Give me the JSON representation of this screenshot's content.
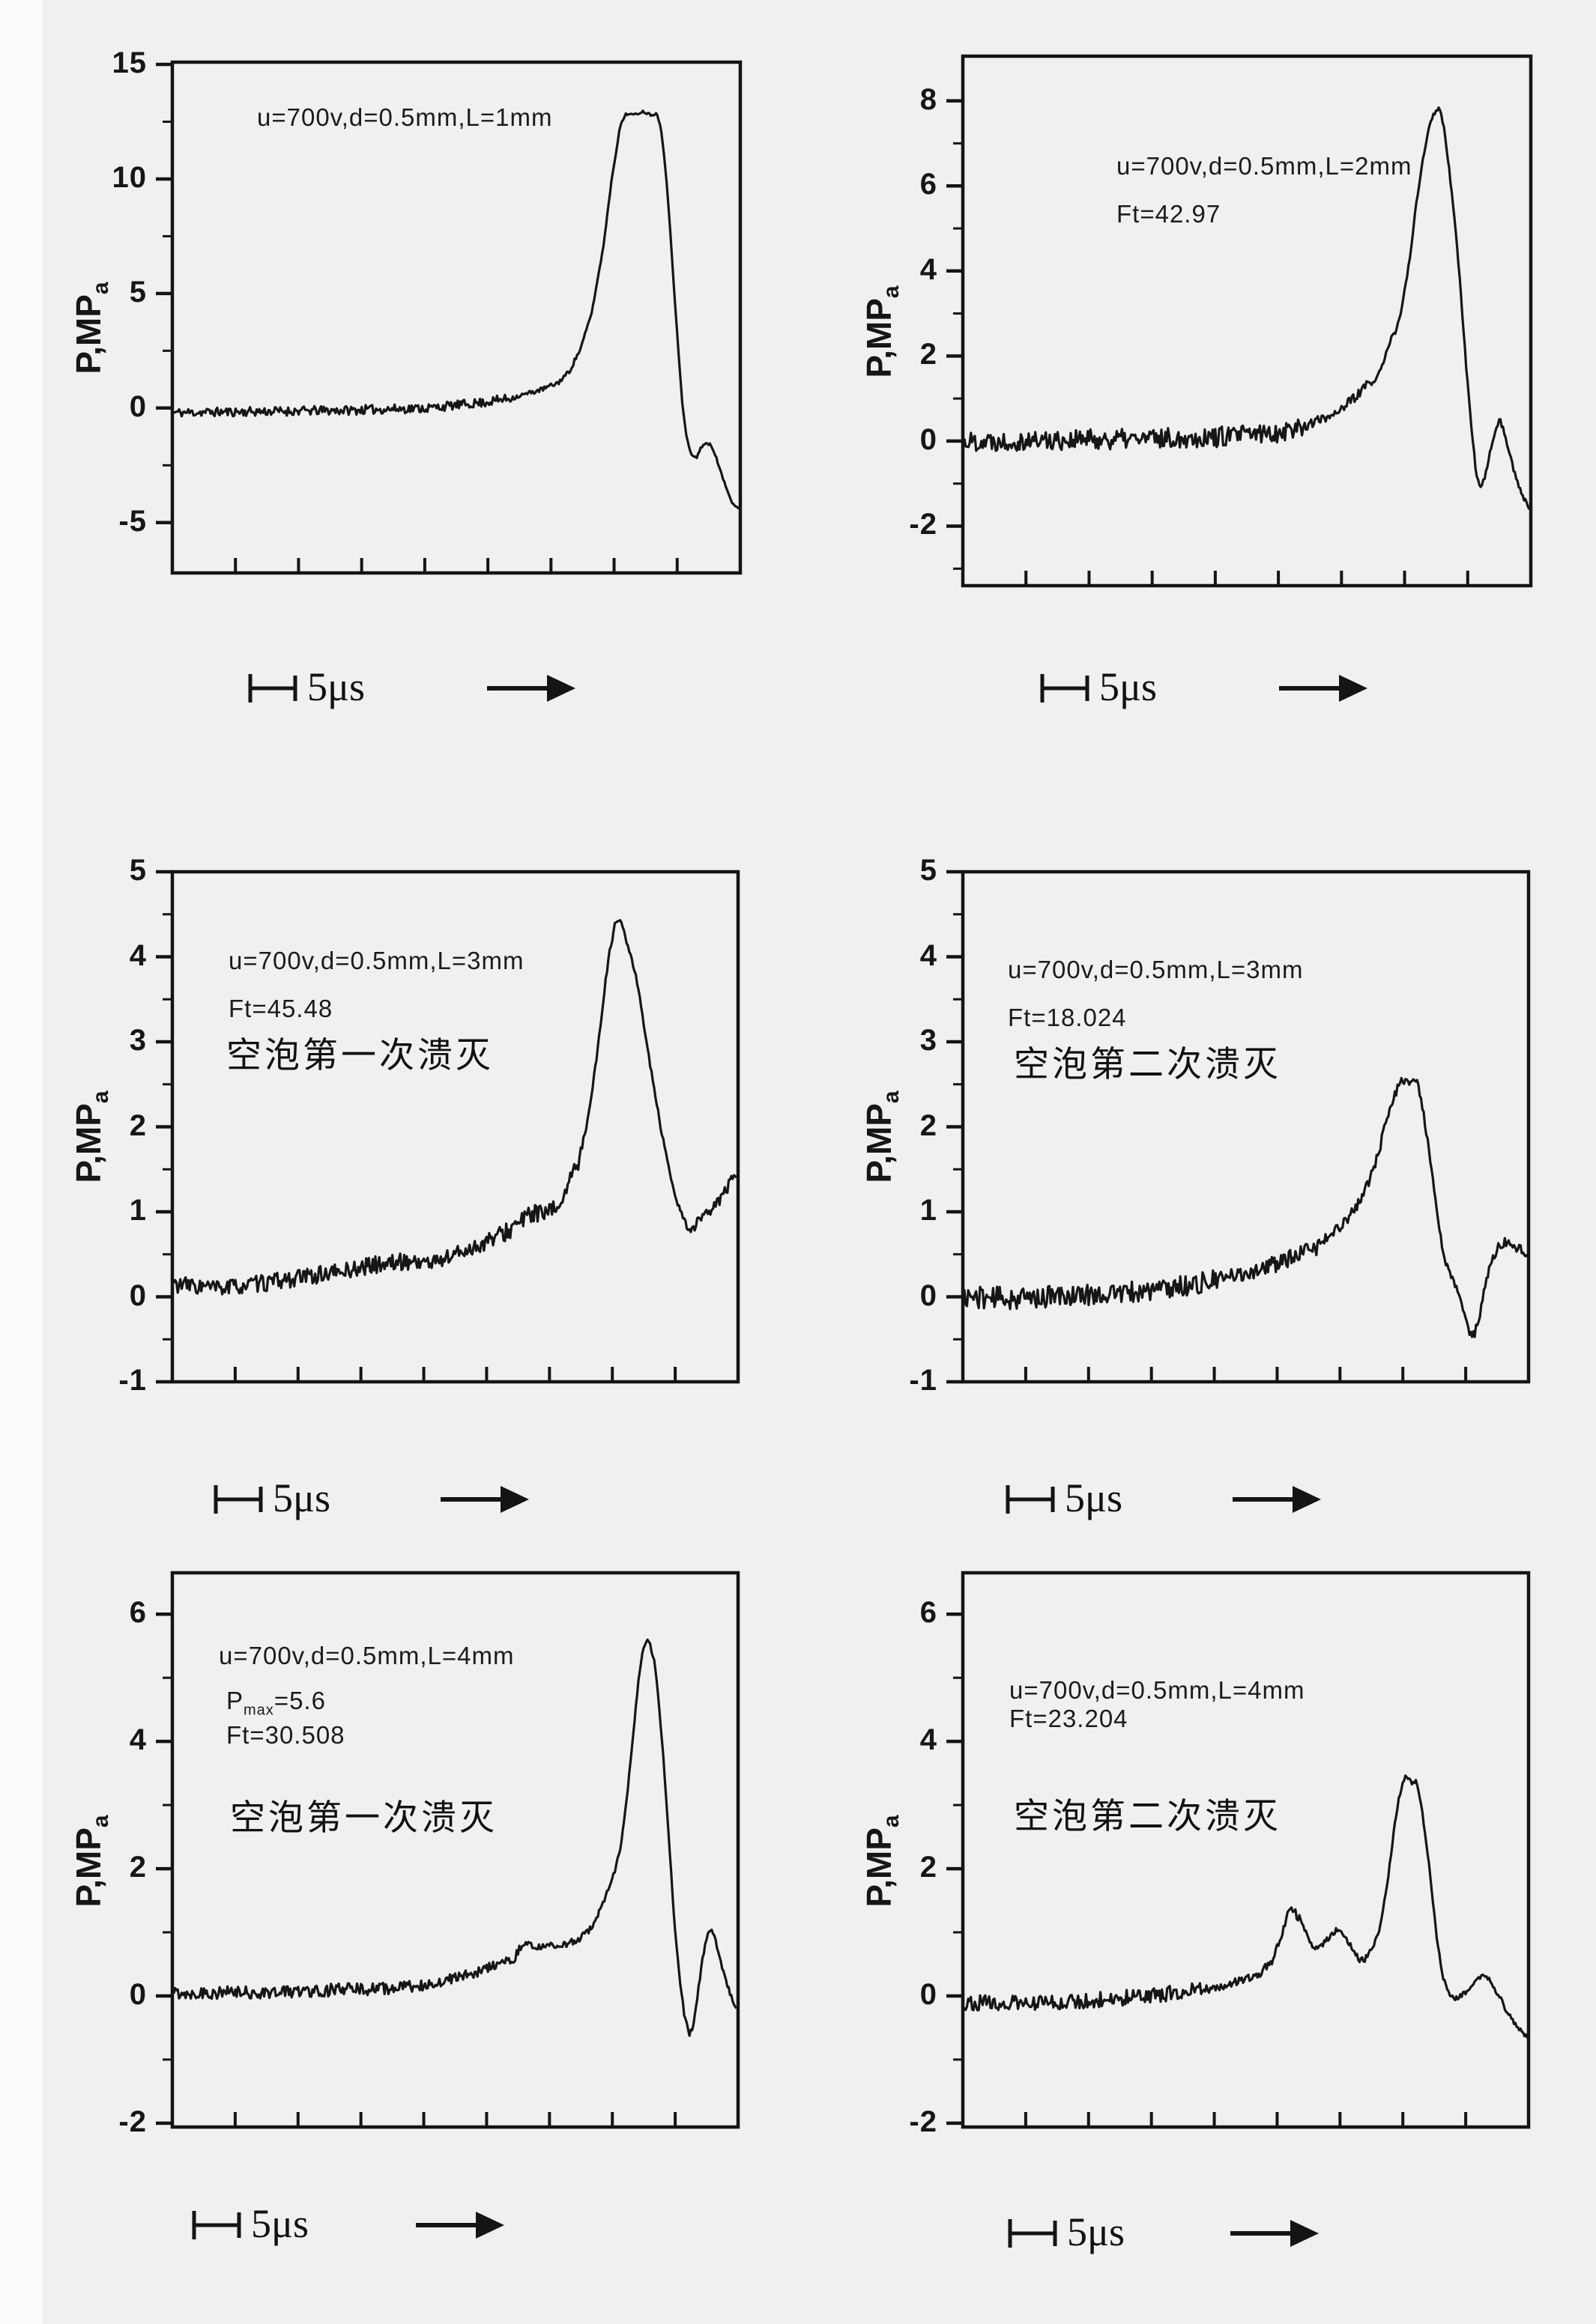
{
  "page": {
    "background": "#f1f0ee",
    "paper_edge_color": "#fbfbf9",
    "ink_color": "#141414",
    "description_visible_text_only": true
  },
  "axis_label": {
    "prefix": "P,MP",
    "subscript": "a"
  },
  "scale_label": "5μs",
  "chart_data": [
    {
      "type": "line",
      "position": "row1-left",
      "ylabel": "P,MPa",
      "xlabel": "",
      "annotations": [
        "u=700v,d=0.5mm,L=1mm"
      ],
      "chinese_label": "",
      "y_ticks": [
        15,
        10,
        5,
        0,
        -5
      ],
      "y_minor_ticks": [
        12.5,
        7.5,
        2.5,
        -2.5
      ],
      "ylim": [
        -7.2,
        15.1
      ],
      "time_scale_per_div": "5μs",
      "trace": [
        [
          0,
          -0.2
        ],
        [
          0.3,
          -0.1
        ],
        [
          0.45,
          0
        ],
        [
          0.55,
          0.25
        ],
        [
          0.6,
          0.45
        ],
        [
          0.65,
          0.8
        ],
        [
          0.68,
          1.1
        ],
        [
          0.7,
          1.6
        ],
        [
          0.72,
          2.6
        ],
        [
          0.74,
          4.2
        ],
        [
          0.76,
          7.0
        ],
        [
          0.775,
          10.0
        ],
        [
          0.79,
          12.3
        ],
        [
          0.8,
          12.85
        ],
        [
          0.815,
          12.8
        ],
        [
          0.83,
          12.95
        ],
        [
          0.845,
          12.8
        ],
        [
          0.855,
          12.85
        ],
        [
          0.862,
          12.3
        ],
        [
          0.87,
          10.5
        ],
        [
          0.878,
          8.0
        ],
        [
          0.886,
          5.0
        ],
        [
          0.893,
          2.5
        ],
        [
          0.9,
          0.2
        ],
        [
          0.907,
          -1.2
        ],
        [
          0.915,
          -2.0
        ],
        [
          0.925,
          -2.2
        ],
        [
          0.932,
          -1.75
        ],
        [
          0.94,
          -1.55
        ],
        [
          0.95,
          -1.6
        ],
        [
          0.958,
          -2.0
        ],
        [
          0.968,
          -2.8
        ],
        [
          0.978,
          -3.5
        ],
        [
          0.988,
          -4.1
        ],
        [
          1,
          -4.4
        ]
      ],
      "noise": [
        [
          0.6,
          0.2
        ],
        [
          0.72,
          0.1
        ],
        [
          0.9,
          0.05
        ],
        [
          1,
          0.05
        ]
      ],
      "seed": 11
    },
    {
      "type": "line",
      "position": "row1-right",
      "ylabel": "P,MPa",
      "xlabel": "",
      "annotations": [
        "u=700v,d=0.5mm,L=2mm",
        "Ft=42.97"
      ],
      "chinese_label": "",
      "y_ticks": [
        8,
        6,
        4,
        2,
        0,
        -2
      ],
      "y_minor_ticks": [
        7,
        5,
        3,
        1,
        -1,
        -3
      ],
      "ylim": [
        -3.4,
        9.05
      ],
      "time_scale_per_div": "5μs",
      "trace": [
        [
          0,
          0
        ],
        [
          0.3,
          0.05
        ],
        [
          0.45,
          0.1
        ],
        [
          0.55,
          0.2
        ],
        [
          0.6,
          0.35
        ],
        [
          0.64,
          0.55
        ],
        [
          0.67,
          0.8
        ],
        [
          0.69,
          1.0
        ],
        [
          0.71,
          1.3
        ],
        [
          0.725,
          1.35
        ],
        [
          0.74,
          1.8
        ],
        [
          0.755,
          2.4
        ],
        [
          0.765,
          2.6
        ],
        [
          0.775,
          3.2
        ],
        [
          0.79,
          4.4
        ],
        [
          0.8,
          5.6
        ],
        [
          0.815,
          6.9
        ],
        [
          0.825,
          7.5
        ],
        [
          0.835,
          7.78
        ],
        [
          0.842,
          7.82
        ],
        [
          0.85,
          7.3
        ],
        [
          0.858,
          6.4
        ],
        [
          0.868,
          5.2
        ],
        [
          0.878,
          3.6
        ],
        [
          0.888,
          1.8
        ],
        [
          0.898,
          0.2
        ],
        [
          0.906,
          -0.75
        ],
        [
          0.913,
          -1.1
        ],
        [
          0.92,
          -0.9
        ],
        [
          0.93,
          -0.3
        ],
        [
          0.94,
          0.3
        ],
        [
          0.948,
          0.5
        ],
        [
          0.956,
          0.2
        ],
        [
          0.965,
          -0.3
        ],
        [
          0.975,
          -0.8
        ],
        [
          0.985,
          -1.2
        ],
        [
          1,
          -1.6
        ]
      ],
      "noise": [
        [
          0.6,
          0.24
        ],
        [
          0.72,
          0.12
        ],
        [
          0.9,
          0.05
        ],
        [
          1,
          0.06
        ]
      ],
      "seed": 22
    },
    {
      "type": "line",
      "position": "row2-left",
      "ylabel": "P,MPa",
      "xlabel": "",
      "annotations": [
        "u=700v,d=0.5mm,L=3mm",
        "Ft=45.48"
      ],
      "chinese_label": "空泡第一次溃灭",
      "y_ticks": [
        5,
        4,
        3,
        2,
        1,
        0,
        -1
      ],
      "y_minor_ticks": [
        4.5,
        3.5,
        2.5,
        1.5,
        0.5,
        -0.5
      ],
      "ylim": [
        -1,
        5
      ],
      "time_scale_per_div": "5μs",
      "trace": [
        [
          0,
          0.15
        ],
        [
          0.08,
          0.1
        ],
        [
          0.15,
          0.15
        ],
        [
          0.22,
          0.22
        ],
        [
          0.3,
          0.3
        ],
        [
          0.36,
          0.38
        ],
        [
          0.42,
          0.42
        ],
        [
          0.46,
          0.4
        ],
        [
          0.5,
          0.5
        ],
        [
          0.54,
          0.6
        ],
        [
          0.58,
          0.72
        ],
        [
          0.61,
          0.85
        ],
        [
          0.64,
          1.0
        ],
        [
          0.66,
          0.95
        ],
        [
          0.68,
          1.05
        ],
        [
          0.7,
          1.3
        ],
        [
          0.715,
          1.5
        ],
        [
          0.73,
          1.9
        ],
        [
          0.745,
          2.5
        ],
        [
          0.755,
          3.0
        ],
        [
          0.765,
          3.6
        ],
        [
          0.775,
          4.1
        ],
        [
          0.785,
          4.4
        ],
        [
          0.792,
          4.45
        ],
        [
          0.8,
          4.3
        ],
        [
          0.81,
          4.05
        ],
        [
          0.82,
          3.8
        ],
        [
          0.83,
          3.45
        ],
        [
          0.84,
          3.0
        ],
        [
          0.852,
          2.5
        ],
        [
          0.865,
          2.0
        ],
        [
          0.878,
          1.55
        ],
        [
          0.89,
          1.2
        ],
        [
          0.9,
          1.0
        ],
        [
          0.912,
          0.82
        ],
        [
          0.922,
          0.78
        ],
        [
          0.932,
          0.9
        ],
        [
          0.945,
          0.95
        ],
        [
          0.96,
          1.05
        ],
        [
          0.975,
          1.2
        ],
        [
          0.99,
          1.35
        ],
        [
          1,
          1.4
        ]
      ],
      "noise": [
        [
          0.55,
          0.1
        ],
        [
          0.72,
          0.11
        ],
        [
          0.8,
          0.04
        ],
        [
          0.9,
          0.03
        ],
        [
          1,
          0.07
        ]
      ],
      "seed": 33
    },
    {
      "type": "line",
      "position": "row2-right",
      "ylabel": "P,MPa",
      "xlabel": "",
      "annotations": [
        "u=700v,d=0.5mm,L=3mm",
        "Ft=18.024"
      ],
      "chinese_label": "空泡第二次溃灭",
      "y_ticks": [
        5,
        4,
        3,
        2,
        1,
        0,
        -1
      ],
      "y_minor_ticks": [
        4.5,
        3.5,
        2.5,
        1.5,
        0.5,
        -0.5
      ],
      "ylim": [
        -1,
        5
      ],
      "time_scale_per_div": "5μs",
      "trace": [
        [
          0,
          0
        ],
        [
          0.1,
          -0.02
        ],
        [
          0.2,
          0.02
        ],
        [
          0.3,
          0.05
        ],
        [
          0.38,
          0.12
        ],
        [
          0.44,
          0.18
        ],
        [
          0.5,
          0.28
        ],
        [
          0.55,
          0.38
        ],
        [
          0.6,
          0.5
        ],
        [
          0.63,
          0.6
        ],
        [
          0.66,
          0.78
        ],
        [
          0.685,
          0.95
        ],
        [
          0.7,
          1.1
        ],
        [
          0.715,
          1.3
        ],
        [
          0.73,
          1.55
        ],
        [
          0.74,
          1.8
        ],
        [
          0.75,
          2.05
        ],
        [
          0.76,
          2.3
        ],
        [
          0.77,
          2.45
        ],
        [
          0.78,
          2.55
        ],
        [
          0.79,
          2.5
        ],
        [
          0.798,
          2.6
        ],
        [
          0.806,
          2.5
        ],
        [
          0.815,
          2.2
        ],
        [
          0.824,
          1.8
        ],
        [
          0.833,
          1.35
        ],
        [
          0.842,
          0.9
        ],
        [
          0.85,
          0.55
        ],
        [
          0.858,
          0.35
        ],
        [
          0.868,
          0.2
        ],
        [
          0.878,
          0.05
        ],
        [
          0.888,
          -0.2
        ],
        [
          0.898,
          -0.42
        ],
        [
          0.906,
          -0.45
        ],
        [
          0.915,
          -0.25
        ],
        [
          0.925,
          0.1
        ],
        [
          0.935,
          0.4
        ],
        [
          0.95,
          0.6
        ],
        [
          0.962,
          0.65
        ],
        [
          0.975,
          0.6
        ],
        [
          0.99,
          0.55
        ],
        [
          1,
          0.45
        ]
      ],
      "noise": [
        [
          0.45,
          0.13
        ],
        [
          0.65,
          0.1
        ],
        [
          0.78,
          0.06
        ],
        [
          0.9,
          0.04
        ],
        [
          1,
          0.05
        ]
      ],
      "seed": 44
    },
    {
      "type": "line",
      "position": "row3-left",
      "ylabel": "P,MPa",
      "xlabel": "",
      "annotations": [
        "u=700v,d=0.5mm,L=4mm",
        "Ft=30.508"
      ],
      "pmax": {
        "prefix": "P",
        "sub": "max",
        "rest": "=5.6"
      },
      "chinese_label": "空泡第一次溃灭",
      "y_ticks": [
        6,
        4,
        2,
        0,
        -2
      ],
      "y_minor_ticks": [
        5,
        3,
        1,
        -1
      ],
      "ylim": [
        -2.06,
        6.65
      ],
      "time_scale_per_div": "5μs",
      "trace": [
        [
          0,
          0.05
        ],
        [
          0.15,
          0.05
        ],
        [
          0.3,
          0.1
        ],
        [
          0.4,
          0.12
        ],
        [
          0.46,
          0.2
        ],
        [
          0.5,
          0.28
        ],
        [
          0.54,
          0.38
        ],
        [
          0.57,
          0.48
        ],
        [
          0.6,
          0.55
        ],
        [
          0.615,
          0.72
        ],
        [
          0.625,
          0.85
        ],
        [
          0.64,
          0.75
        ],
        [
          0.66,
          0.8
        ],
        [
          0.68,
          0.78
        ],
        [
          0.7,
          0.82
        ],
        [
          0.72,
          0.9
        ],
        [
          0.735,
          1.0
        ],
        [
          0.75,
          1.2
        ],
        [
          0.765,
          1.5
        ],
        [
          0.775,
          1.75
        ],
        [
          0.785,
          2.0
        ],
        [
          0.795,
          2.4
        ],
        [
          0.805,
          3.1
        ],
        [
          0.815,
          4.0
        ],
        [
          0.825,
          4.9
        ],
        [
          0.833,
          5.45
        ],
        [
          0.84,
          5.6
        ],
        [
          0.847,
          5.5
        ],
        [
          0.855,
          5.2
        ],
        [
          0.863,
          4.5
        ],
        [
          0.872,
          3.5
        ],
        [
          0.881,
          2.3
        ],
        [
          0.89,
          1.1
        ],
        [
          0.9,
          0.2
        ],
        [
          0.908,
          -0.35
        ],
        [
          0.916,
          -0.6
        ],
        [
          0.924,
          -0.45
        ],
        [
          0.932,
          0.1
        ],
        [
          0.94,
          0.6
        ],
        [
          0.948,
          0.95
        ],
        [
          0.954,
          1.05
        ],
        [
          0.962,
          0.9
        ],
        [
          0.97,
          0.6
        ],
        [
          0.978,
          0.35
        ],
        [
          0.988,
          0.05
        ],
        [
          1,
          -0.2
        ]
      ],
      "noise": [
        [
          0.45,
          0.1
        ],
        [
          0.62,
          0.08
        ],
        [
          0.78,
          0.05
        ],
        [
          0.9,
          0.03
        ],
        [
          1,
          0.04
        ]
      ],
      "seed": 55
    },
    {
      "type": "line",
      "position": "row3-right",
      "ylabel": "P,MPa",
      "xlabel": "",
      "annotations": [
        "u=700v,d=0.5mm,L=4mm",
        "Ft=23.204"
      ],
      "chinese_label": "空泡第二次溃灭",
      "y_ticks": [
        6,
        4,
        2,
        0,
        -2
      ],
      "y_minor_ticks": [
        5,
        3,
        1,
        -1
      ],
      "ylim": [
        -2.06,
        6.65
      ],
      "time_scale_per_div": "5μs",
      "trace": [
        [
          0,
          -0.1
        ],
        [
          0.1,
          -0.12
        ],
        [
          0.2,
          -0.08
        ],
        [
          0.3,
          -0.02
        ],
        [
          0.38,
          0.05
        ],
        [
          0.44,
          0.12
        ],
        [
          0.48,
          0.22
        ],
        [
          0.51,
          0.3
        ],
        [
          0.53,
          0.38
        ],
        [
          0.55,
          0.6
        ],
        [
          0.565,
          1.0
        ],
        [
          0.575,
          1.3
        ],
        [
          0.582,
          1.35
        ],
        [
          0.59,
          1.28
        ],
        [
          0.6,
          1.15
        ],
        [
          0.61,
          0.9
        ],
        [
          0.62,
          0.78
        ],
        [
          0.632,
          0.78
        ],
        [
          0.645,
          0.9
        ],
        [
          0.655,
          1.0
        ],
        [
          0.665,
          1.05
        ],
        [
          0.675,
          0.95
        ],
        [
          0.685,
          0.8
        ],
        [
          0.695,
          0.65
        ],
        [
          0.705,
          0.55
        ],
        [
          0.715,
          0.6
        ],
        [
          0.725,
          0.75
        ],
        [
          0.735,
          0.95
        ],
        [
          0.745,
          1.4
        ],
        [
          0.755,
          2.0
        ],
        [
          0.765,
          2.7
        ],
        [
          0.772,
          3.1
        ],
        [
          0.78,
          3.4
        ],
        [
          0.787,
          3.45
        ],
        [
          0.795,
          3.35
        ],
        [
          0.803,
          3.4
        ],
        [
          0.81,
          3.1
        ],
        [
          0.82,
          2.5
        ],
        [
          0.83,
          1.7
        ],
        [
          0.84,
          0.9
        ],
        [
          0.85,
          0.3
        ],
        [
          0.86,
          0.05
        ],
        [
          0.87,
          -0.05
        ],
        [
          0.88,
          0
        ],
        [
          0.9,
          0.12
        ],
        [
          0.915,
          0.3
        ],
        [
          0.925,
          0.35
        ],
        [
          0.935,
          0.25
        ],
        [
          0.95,
          0.0
        ],
        [
          0.965,
          -0.25
        ],
        [
          0.98,
          -0.45
        ],
        [
          1,
          -0.65
        ]
      ],
      "noise": [
        [
          0.42,
          0.12
        ],
        [
          0.6,
          0.07
        ],
        [
          0.73,
          0.05
        ],
        [
          0.88,
          0.04
        ],
        [
          1,
          0.04
        ]
      ],
      "seed": 66
    }
  ]
}
